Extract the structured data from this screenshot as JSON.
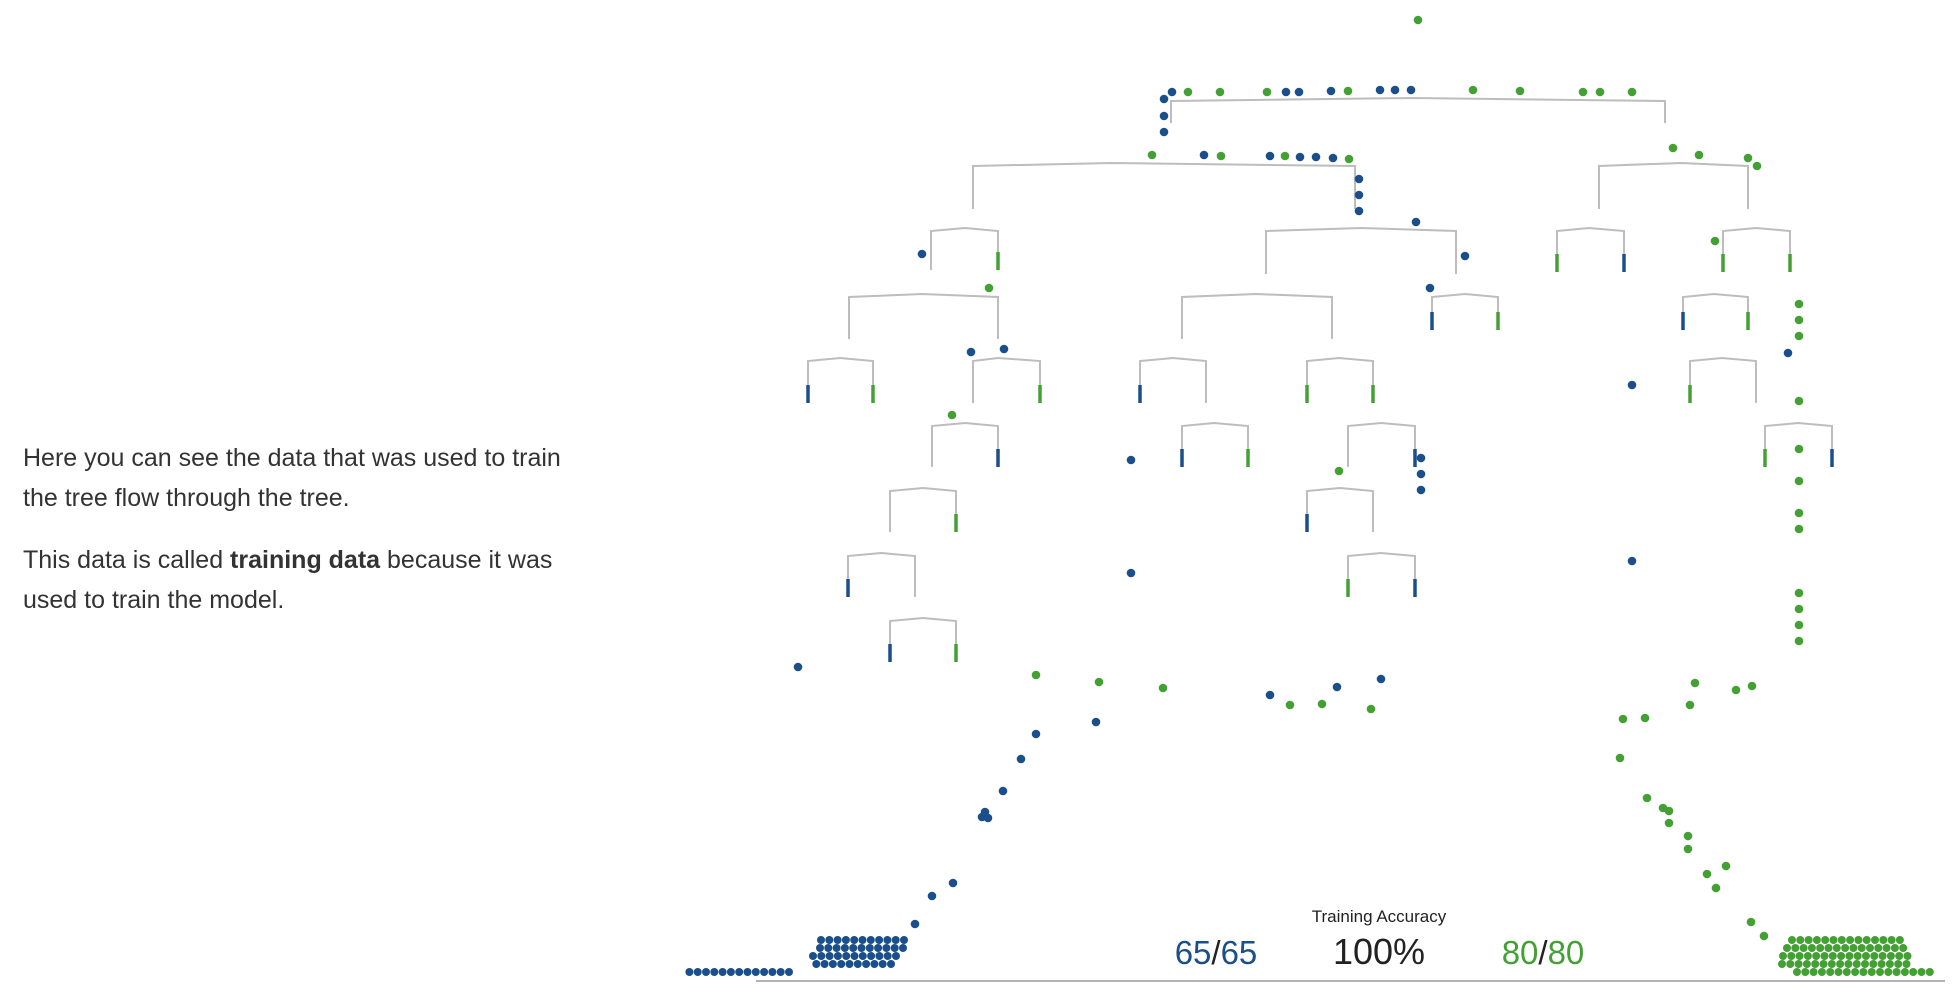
{
  "narrative": {
    "p1": "Here you can see the data that was used to train the tree flow through the tree.",
    "p2_pre": "This data is called ",
    "p2_bold": "training data",
    "p2_post": " because it was used to train the model."
  },
  "accuracy": {
    "title": "Training Accuracy",
    "percent": "100%",
    "class_a": {
      "correct": "65",
      "total": "65"
    },
    "class_b": {
      "correct": "80",
      "total": "80"
    },
    "separator": "/"
  },
  "colors": {
    "class_a": "#1a4f8b",
    "class_b": "#43a033",
    "branch": "#bdbdbd",
    "baseline": "#999999"
  },
  "tree": {
    "max_depth": 9,
    "leaf_marker": "vertical-bar"
  }
}
